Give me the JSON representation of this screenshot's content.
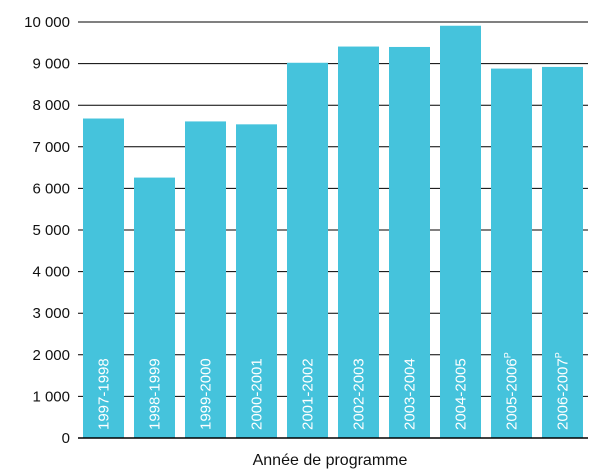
{
  "chart_data": {
    "type": "bar",
    "title": "",
    "xlabel": "Année de programme",
    "ylabel": "",
    "ylim": [
      0,
      10000
    ],
    "grid": true,
    "bar_color": "#45c3dc",
    "categories": [
      {
        "label": "1997-1998",
        "sup": ""
      },
      {
        "label": "1998-1999",
        "sup": ""
      },
      {
        "label": "1999-2000",
        "sup": ""
      },
      {
        "label": "2000-2001",
        "sup": ""
      },
      {
        "label": "2001-2002",
        "sup": ""
      },
      {
        "label": "2002-2003",
        "sup": ""
      },
      {
        "label": "2003-2004",
        "sup": ""
      },
      {
        "label": "2004-2005",
        "sup": ""
      },
      {
        "label": "2005-2006",
        "sup": "P"
      },
      {
        "label": "2006-2007",
        "sup": "P"
      }
    ],
    "values": [
      7680,
      6260,
      7610,
      7540,
      9020,
      9410,
      9400,
      9910,
      8880,
      8920
    ],
    "y_ticks": [
      {
        "value": 0,
        "label": "0"
      },
      {
        "value": 1000,
        "label": "1 000"
      },
      {
        "value": 2000,
        "label": "2 000"
      },
      {
        "value": 3000,
        "label": "3 000"
      },
      {
        "value": 4000,
        "label": "4 000"
      },
      {
        "value": 5000,
        "label": "5 000"
      },
      {
        "value": 6000,
        "label": "6 000"
      },
      {
        "value": 7000,
        "label": "7 000"
      },
      {
        "value": 8000,
        "label": "8 000"
      },
      {
        "value": 9000,
        "label": "9 000"
      },
      {
        "value": 10000,
        "label": "10 000"
      }
    ]
  }
}
